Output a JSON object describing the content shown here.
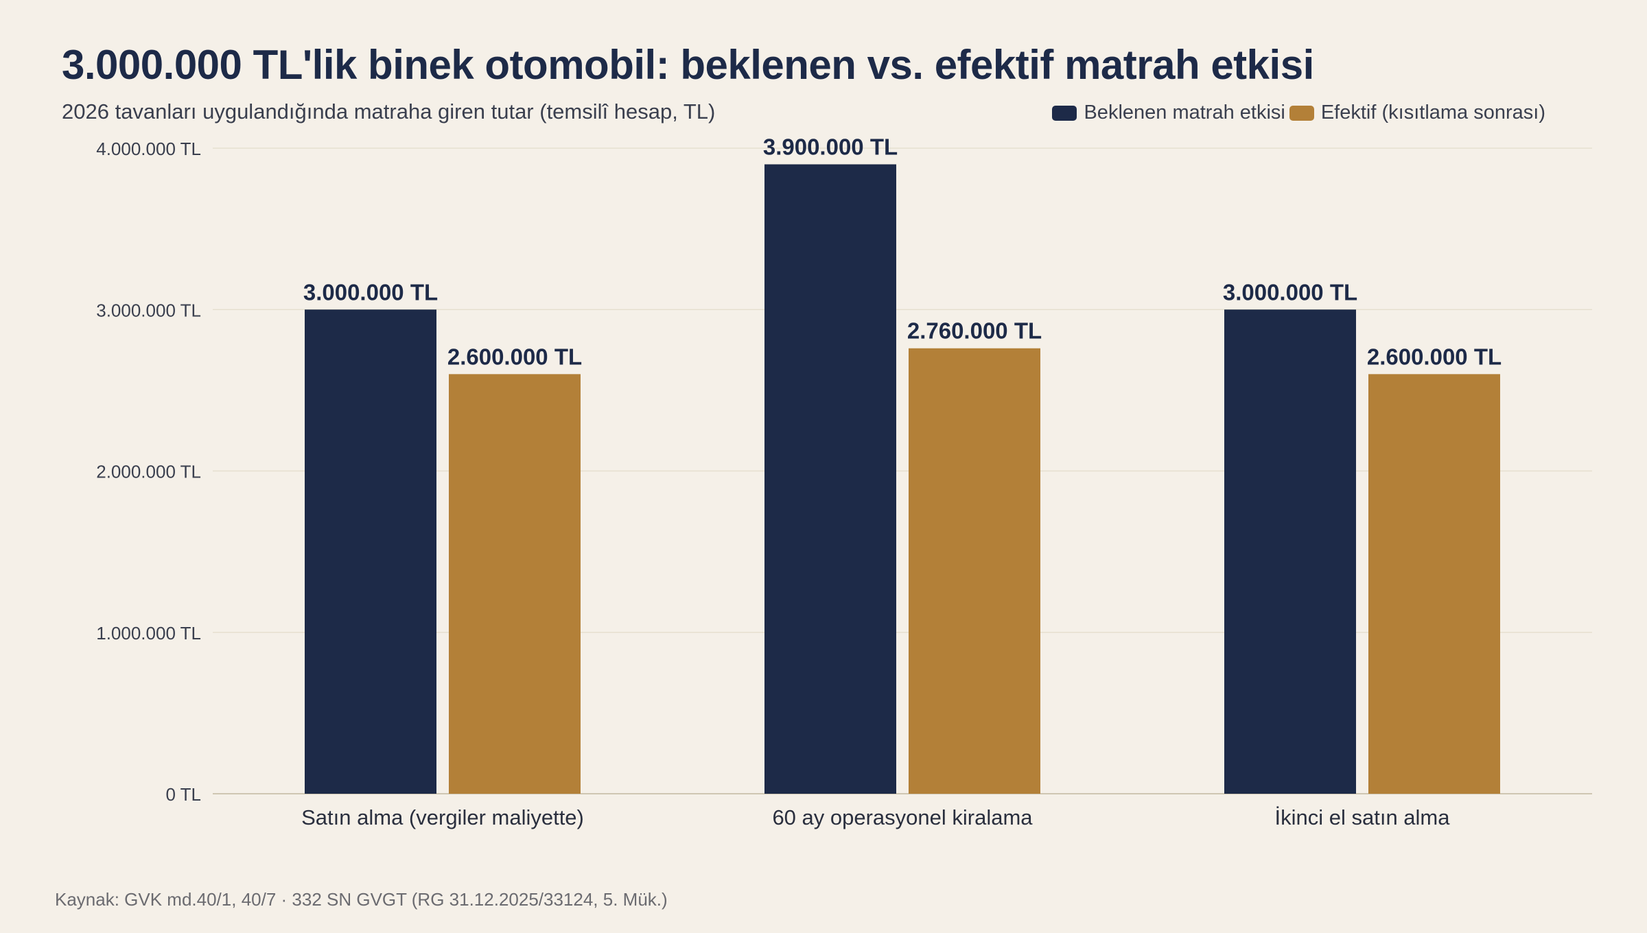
{
  "title": "3.000.000 TL'lik binek otomobil: beklenen vs. efektif matrah etkisi",
  "subtitle": "2026 tavanları uygulandığında matraha giren tutar (temsilî hesap, TL)",
  "source": "Kaynak: GVK md.40/1, 40/7 · 332 SN GVGT (RG 31.12.2025/33124, 5. Mük.)",
  "colors": {
    "background": "#f5f0e8",
    "series_expected": "#1d2a48",
    "series_effective": "#b38038",
    "grid": "#e6dfcf",
    "axis_text": "#3a3f4e"
  },
  "chart_data": {
    "type": "bar",
    "categories": [
      "Satın alma (vergiler maliyette)",
      "60 ay operasyonel kiralama",
      "İkinci el satın alma"
    ],
    "series": [
      {
        "name": "Beklenen matrah etkisi",
        "values": [
          3000000,
          3900000,
          3000000
        ],
        "labels": [
          "3.000.000 TL",
          "3.900.000 TL",
          "3.000.000 TL"
        ]
      },
      {
        "name": "Efektif (kısıtlama sonrası)",
        "values": [
          2600000,
          2760000,
          2600000
        ],
        "labels": [
          "2.600.000 TL",
          "2.760.000 TL",
          "2.600.000 TL"
        ]
      }
    ],
    "ylim": [
      0,
      4000000
    ],
    "yticks": [
      0,
      1000000,
      2000000,
      3000000,
      4000000
    ],
    "ytick_labels": [
      "0 TL",
      "1.000.000 TL",
      "2.000.000 TL",
      "3.000.000 TL",
      "4.000.000 TL"
    ],
    "grid": true,
    "legend_position": "top-right"
  }
}
